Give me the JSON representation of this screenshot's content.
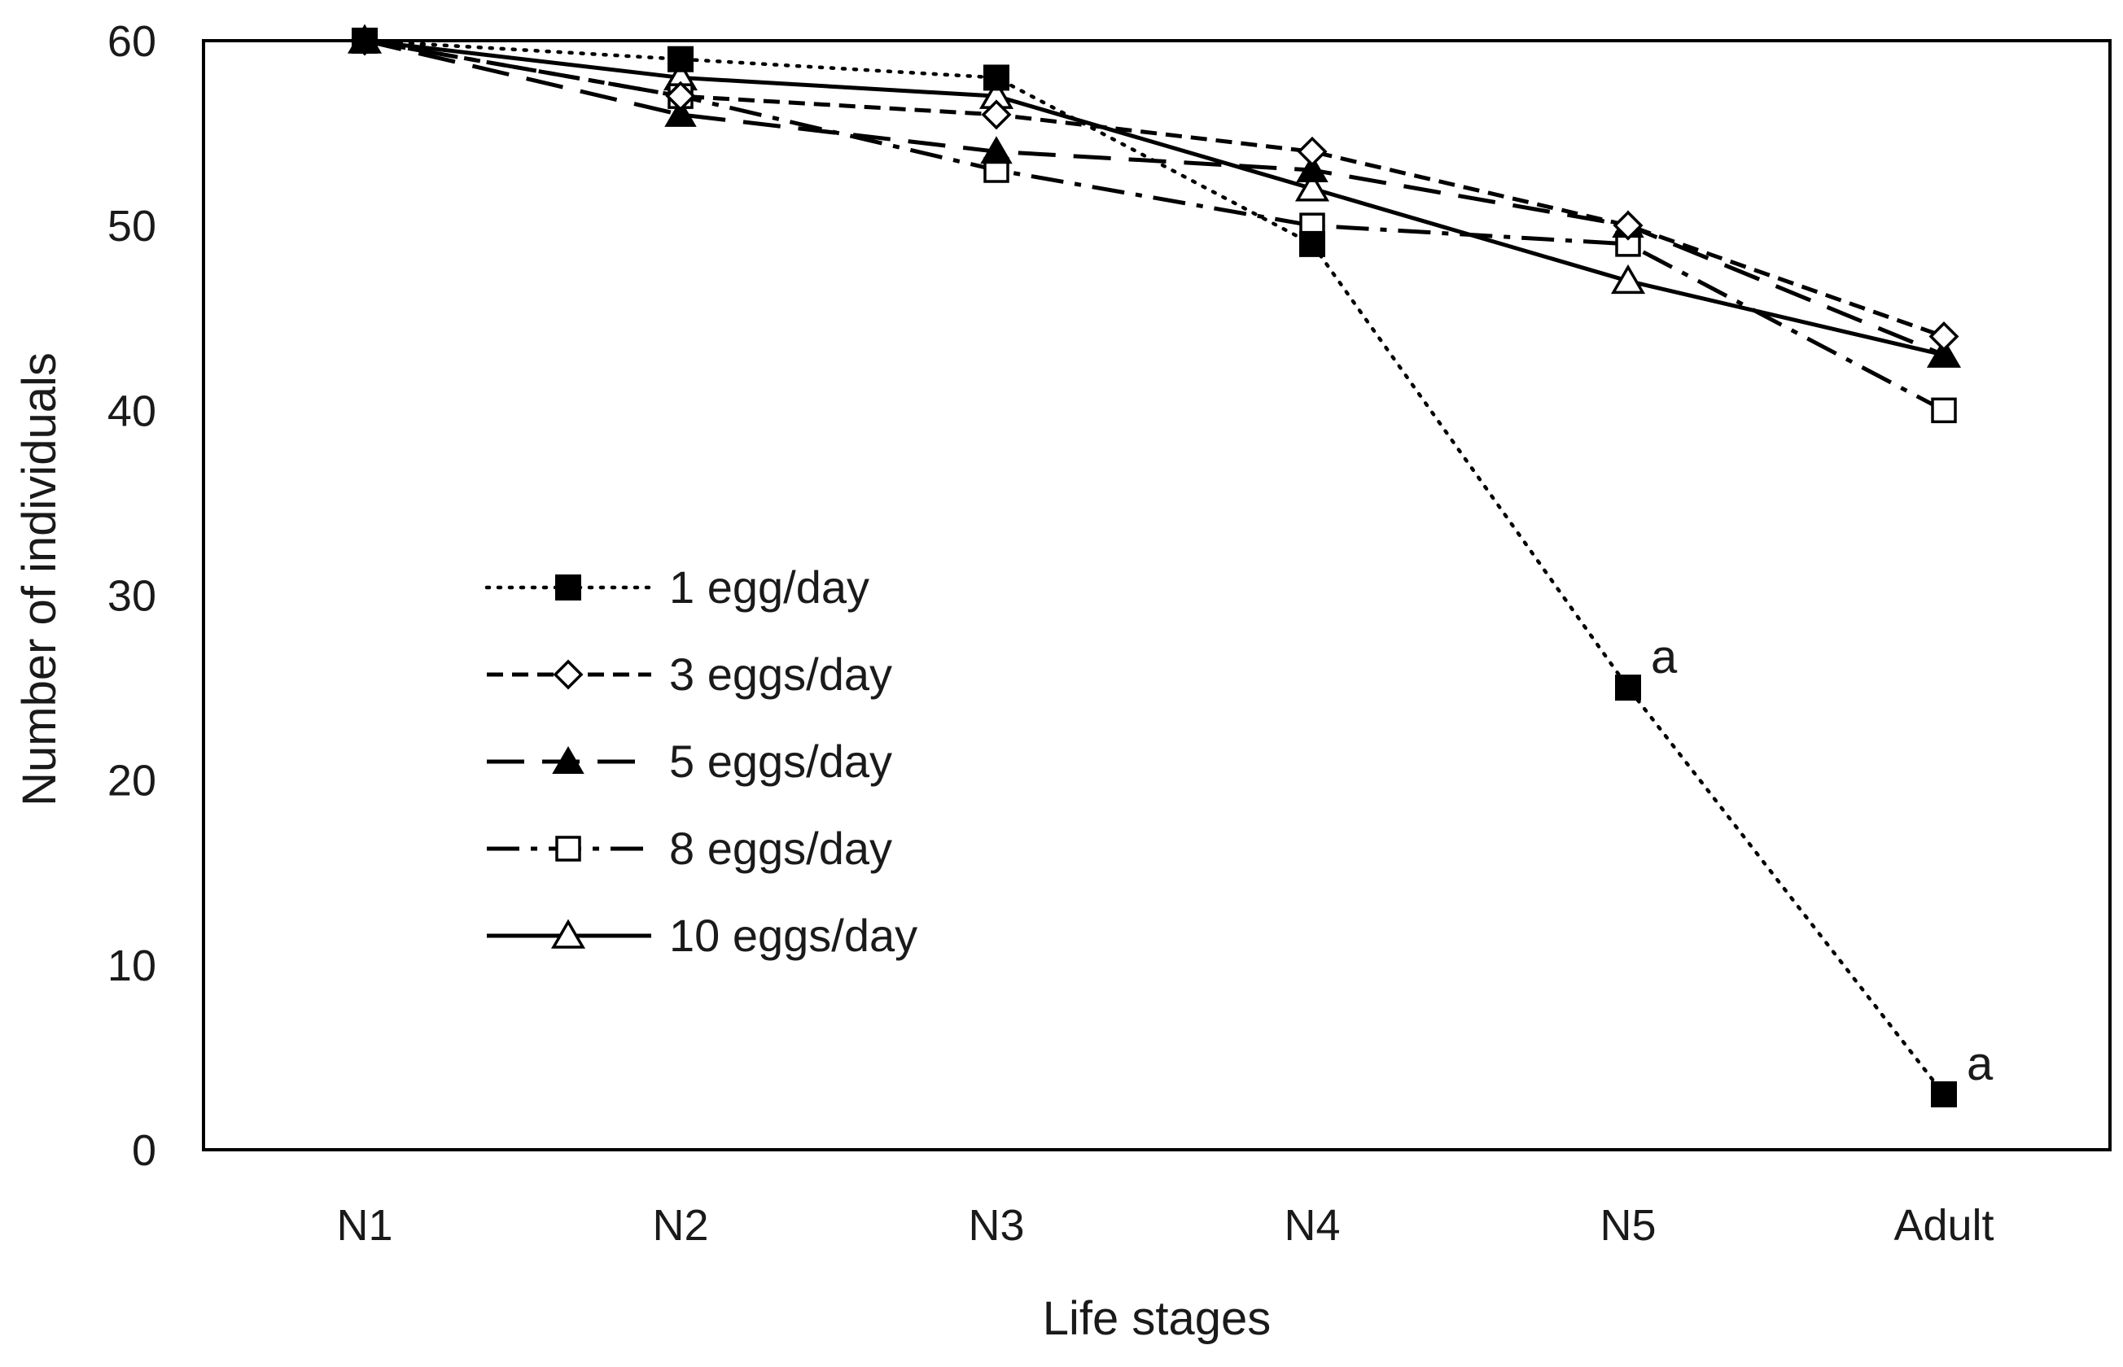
{
  "chart_data": {
    "type": "line",
    "title": "",
    "xlabel": "Life stages",
    "ylabel": "Number of individuals",
    "categories": [
      "N1",
      "N2",
      "N3",
      "N4",
      "N5",
      "Adult"
    ],
    "ylim": [
      0,
      60
    ],
    "yticks": [
      0,
      10,
      20,
      30,
      40,
      50,
      60
    ],
    "grid": false,
    "legend_position": "center-left",
    "series": [
      {
        "name": "1 egg/day",
        "values": [
          60,
          59,
          58,
          49,
          25,
          3
        ],
        "dash": "dotted",
        "marker": "square-filled"
      },
      {
        "name": "3 eggs/day",
        "values": [
          60,
          57,
          56,
          54,
          50,
          44
        ],
        "dash": "short-dash",
        "marker": "diamond-open"
      },
      {
        "name": "5 eggs/day",
        "values": [
          60,
          56,
          54,
          53,
          50,
          43
        ],
        "dash": "long-dash",
        "marker": "triangle-filled"
      },
      {
        "name": "8 eggs/day",
        "values": [
          60,
          57,
          53,
          50,
          49,
          40
        ],
        "dash": "dash-dot",
        "marker": "square-open"
      },
      {
        "name": "10 eggs/day",
        "values": [
          60,
          58,
          57,
          52,
          47,
          43
        ],
        "dash": "solid",
        "marker": "triangle-open"
      }
    ],
    "annotations": [
      {
        "series": "1 egg/day",
        "category": "N5",
        "text": "a"
      },
      {
        "series": "1 egg/day",
        "category": "Adult",
        "text": "a"
      }
    ]
  }
}
